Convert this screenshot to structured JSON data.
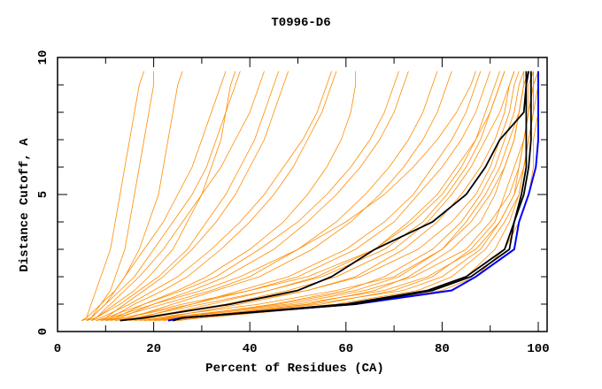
{
  "chart_data": {
    "type": "line",
    "title": "T0996-D6",
    "xlabel": "Percent of Residues (CA)",
    "ylabel": "Distance Cutoff, A",
    "xlim": [
      0,
      100
    ],
    "ylim": [
      0,
      10
    ],
    "x_ticks": [
      "0",
      "20",
      "40",
      "60",
      "80",
      "100"
    ],
    "y_ticks": [
      "0",
      "5",
      "10"
    ],
    "grid": false,
    "legend": "none",
    "colors": {
      "models": "#ff8c00",
      "highlighted": "#000000",
      "best": "#0000ff"
    },
    "distance_levels": [
      0.4,
      0.5,
      1,
      1.5,
      2,
      3,
      4,
      5,
      6,
      7,
      8,
      9,
      9.5
    ],
    "orange_series": [
      [
        5,
        6,
        7,
        8,
        9,
        11,
        12,
        13,
        14,
        15,
        16,
        17,
        18
      ],
      [
        6,
        7,
        9,
        11,
        12,
        14,
        15,
        16,
        17,
        18,
        19,
        20,
        20
      ],
      [
        5,
        6,
        9,
        12,
        14,
        17,
        19,
        21,
        22,
        23,
        24,
        25,
        26
      ],
      [
        7,
        8,
        12,
        16,
        19,
        24,
        27,
        30,
        32,
        34,
        35,
        36,
        37
      ],
      [
        6,
        8,
        11,
        14,
        17,
        22,
        26,
        30,
        34,
        37,
        40,
        42,
        43
      ],
      [
        8,
        10,
        14,
        18,
        22,
        28,
        33,
        37,
        40,
        43,
        45,
        47,
        48
      ],
      [
        9,
        11,
        16,
        22,
        27,
        34,
        40,
        45,
        49,
        52,
        55,
        57,
        58
      ],
      [
        10,
        12,
        18,
        25,
        31,
        40,
        47,
        52,
        56,
        59,
        61,
        62,
        62
      ],
      [
        10,
        13,
        20,
        28,
        35,
        45,
        52,
        58,
        63,
        67,
        70,
        72,
        73
      ],
      [
        12,
        15,
        24,
        33,
        42,
        53,
        61,
        67,
        72,
        76,
        79,
        81,
        82
      ],
      [
        14,
        17,
        28,
        38,
        48,
        60,
        68,
        74,
        78,
        82,
        85,
        87,
        88
      ],
      [
        15,
        19,
        32,
        44,
        54,
        66,
        73,
        79,
        83,
        87,
        89,
        91,
        92
      ],
      [
        18,
        22,
        38,
        52,
        62,
        72,
        79,
        84,
        88,
        91,
        93,
        94,
        95
      ],
      [
        20,
        25,
        45,
        60,
        68,
        78,
        84,
        88,
        91,
        93,
        95,
        96,
        97
      ],
      [
        22,
        27,
        52,
        66,
        73,
        82,
        88,
        91,
        93,
        95,
        96,
        97,
        98
      ],
      [
        21,
        26,
        55,
        70,
        78,
        86,
        91,
        93,
        95,
        97,
        98,
        99,
        99
      ],
      [
        19,
        24,
        50,
        68,
        77,
        87,
        92,
        95,
        97,
        98,
        99,
        99,
        100
      ],
      [
        17,
        22,
        48,
        64,
        74,
        85,
        90,
        94,
        96,
        97,
        98,
        99,
        99
      ],
      [
        16,
        20,
        42,
        58,
        70,
        80,
        86,
        90,
        93,
        95,
        96,
        97,
        98
      ],
      [
        13,
        17,
        35,
        48,
        58,
        70,
        77,
        82,
        86,
        89,
        92,
        94,
        95
      ],
      [
        11,
        14,
        28,
        40,
        50,
        62,
        70,
        75,
        80,
        84,
        87,
        89,
        90
      ],
      [
        9,
        12,
        22,
        32,
        40,
        50,
        58,
        64,
        69,
        73,
        76,
        78,
        79
      ],
      [
        8,
        10,
        18,
        26,
        33,
        42,
        50,
        56,
        61,
        65,
        68,
        70,
        71
      ],
      [
        7,
        9,
        15,
        20,
        25,
        32,
        38,
        43,
        47,
        51,
        54,
        56,
        57
      ],
      [
        6,
        8,
        13,
        17,
        21,
        27,
        31,
        35,
        38,
        41,
        43,
        45,
        46
      ],
      [
        23,
        28,
        58,
        75,
        82,
        89,
        93,
        96,
        97,
        98,
        99,
        99,
        100
      ],
      [
        20,
        26,
        53,
        72,
        80,
        88,
        92,
        95,
        96,
        97,
        98,
        98,
        99
      ],
      [
        24,
        30,
        60,
        78,
        85,
        91,
        94,
        96,
        97,
        98,
        99,
        100,
        100
      ],
      [
        14,
        18,
        36,
        52,
        63,
        75,
        82,
        87,
        90,
        92,
        94,
        95,
        96
      ],
      [
        12,
        16,
        30,
        44,
        55,
        68,
        76,
        81,
        85,
        88,
        90,
        92,
        93
      ],
      [
        5,
        7,
        10,
        12,
        14,
        18,
        22,
        25,
        28,
        30,
        32,
        34,
        35
      ],
      [
        6,
        7,
        10,
        13,
        16,
        20,
        24,
        28,
        31,
        33,
        35,
        37,
        38
      ],
      [
        10,
        14,
        26,
        40,
        52,
        66,
        74,
        80,
        84,
        87,
        90,
        92,
        93
      ],
      [
        18,
        23,
        46,
        62,
        71,
        80,
        85,
        89,
        92,
        94,
        96,
        97,
        97
      ],
      [
        8,
        11,
        20,
        30,
        38,
        50,
        60,
        68,
        74,
        79,
        83,
        86,
        87
      ],
      [
        25,
        30,
        62,
        80,
        87,
        93,
        96,
        98,
        99,
        99,
        100,
        100,
        100
      ]
    ],
    "black_series": [
      [
        13,
        18,
        36,
        50,
        57,
        66,
        78,
        85,
        89,
        92,
        97,
        97.5,
        98
      ],
      [
        24,
        26,
        62,
        78,
        86,
        94,
        95,
        97,
        98,
        98.5,
        98.5,
        98.5,
        98.5
      ],
      [
        24,
        26,
        60,
        77,
        85,
        93,
        95,
        96.5,
        97.5,
        97.5,
        97.5,
        97.5,
        97.5
      ]
    ],
    "blue_series": [
      [
        23,
        26,
        62,
        82,
        87,
        95,
        96,
        98,
        99.5,
        100,
        100,
        100,
        100
      ]
    ]
  }
}
